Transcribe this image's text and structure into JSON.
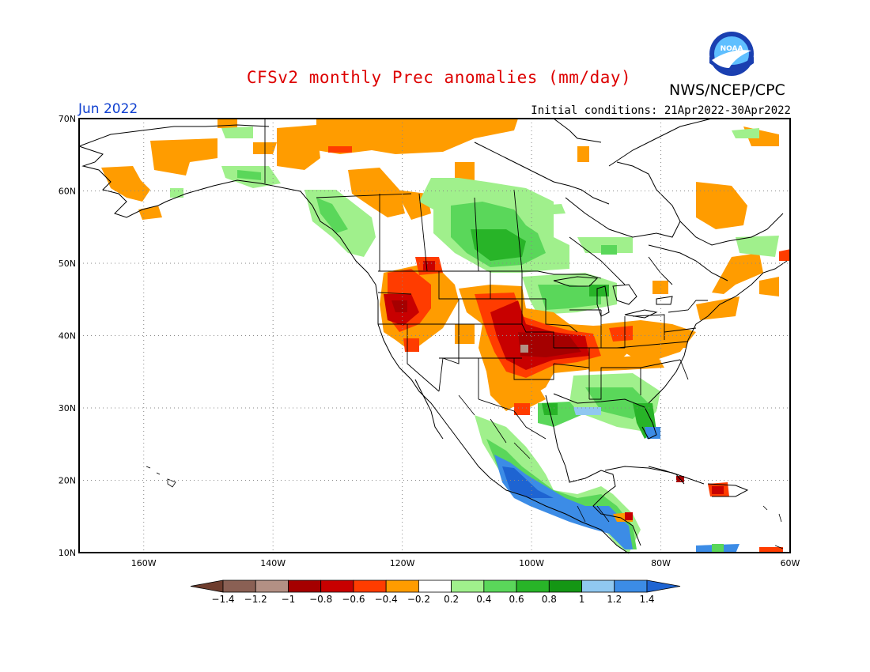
{
  "header": {
    "title": "CFSv2 monthly Prec anomalies (mm/day)",
    "agency": "NWS/NCEP/CPC",
    "logo_text": "NOAA",
    "month": "Jun 2022",
    "initial_conditions": "Initial conditions: 21Apr2022-30Apr2022"
  },
  "map": {
    "lat_labels": [
      "70N",
      "60N",
      "50N",
      "40N",
      "30N",
      "20N",
      "10N"
    ],
    "lon_labels": [
      "160W",
      "140W",
      "120W",
      "100W",
      "80W",
      "60W"
    ],
    "lat_range": [
      10,
      70
    ],
    "lon_range": [
      -170,
      -60
    ],
    "grid": true,
    "land_color": "#ffffff",
    "coast_color": "#000000"
  },
  "colorbar": {
    "labels": [
      "-1.4",
      "-1.2",
      "-1",
      "-0.8",
      "-0.6",
      "-0.4",
      "-0.2",
      "0.2",
      "0.4",
      "0.6",
      "0.8",
      "1",
      "1.2",
      "1.4"
    ],
    "colors": [
      "#6e3d2e",
      "#8a6054",
      "#b39084",
      "#a50000",
      "#c80000",
      "#ff3c00",
      "#ff9c00",
      "#ffffff",
      "#a0f08c",
      "#5ad75a",
      "#28b428",
      "#149614",
      "#90c8f0",
      "#3c8ce6",
      "#1e64d2"
    ]
  }
}
